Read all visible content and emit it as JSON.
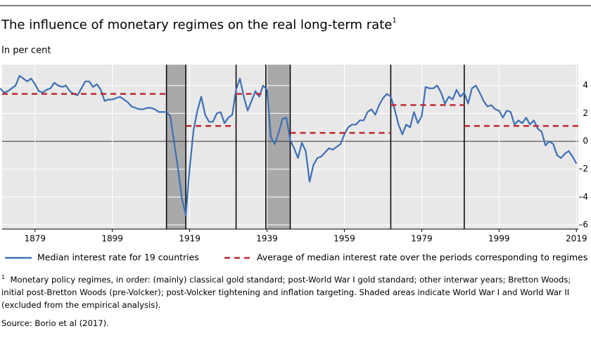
{
  "chart_data": {
    "type": "line",
    "title": "The influence of monetary regimes on the real long-term rate",
    "title_note": "1",
    "subtitle": "In per cent",
    "footnote_marker": "1",
    "footnote": "Monetary policy regimes, in order: (mainly) classical gold standard; post-World War I gold standard; other interwar years; Bretton Woods; initial post-Bretton Woods (pre-Volcker); post-Volcker tightening and inflation targeting. Shaded areas indicate World War I and World War II (excluded from the empirical analysis).",
    "source": "Source: Borio et al (2017).",
    "xlim": [
      1870.5,
      2019.5
    ],
    "xticks": [
      1879,
      1899,
      1919,
      1939,
      1959,
      1979,
      1999,
      2019
    ],
    "ylim": [
      -6.3,
      5.5
    ],
    "yticks": [
      {
        "value": -6,
        "label": "–6"
      },
      {
        "value": -4,
        "label": "–4"
      },
      {
        "value": -2,
        "label": "–2"
      },
      0,
      2,
      4
    ],
    "grid": true,
    "shaded": [
      [
        1913,
        1918
      ],
      [
        1938.7,
        1945
      ]
    ],
    "breaks": [
      1931,
      1971,
      1990
    ],
    "series": [
      {
        "name": "Median interest rate for 19 countries",
        "color": "#3d6fb6",
        "style": "solid",
        "x": [
          1870,
          1871,
          1872,
          1873,
          1874,
          1875,
          1876,
          1877,
          1878,
          1879,
          1880,
          1881,
          1882,
          1883,
          1884,
          1885,
          1886,
          1887,
          1888,
          1889,
          1890,
          1891,
          1892,
          1893,
          1894,
          1895,
          1896,
          1897,
          1898,
          1899,
          1900,
          1901,
          1902,
          1903,
          1904,
          1905,
          1906,
          1907,
          1908,
          1909,
          1910,
          1911,
          1912,
          1913,
          1914,
          1915,
          1916,
          1917,
          1918,
          1919,
          1920,
          1921,
          1922,
          1923,
          1924,
          1925,
          1926,
          1927,
          1928,
          1929,
          1930,
          1931,
          1932,
          1933,
          1934,
          1935,
          1936,
          1937,
          1938,
          1939,
          1940,
          1941,
          1942,
          1943,
          1944,
          1945,
          1946,
          1947,
          1948,
          1949,
          1950,
          1951,
          1952,
          1953,
          1954,
          1955,
          1956,
          1957,
          1958,
          1959,
          1960,
          1961,
          1962,
          1963,
          1964,
          1965,
          1966,
          1967,
          1968,
          1969,
          1970,
          1971,
          1972,
          1973,
          1974,
          1975,
          1976,
          1977,
          1978,
          1979,
          1980,
          1981,
          1982,
          1983,
          1984,
          1985,
          1986,
          1987,
          1988,
          1989,
          1990,
          1991,
          1992,
          1993,
          1994,
          1995,
          1996,
          1997,
          1998,
          1999,
          2000,
          2001,
          2002,
          2003,
          2004,
          2005,
          2006,
          2007,
          2008,
          2009,
          2010,
          2011,
          2012,
          2013,
          2014,
          2015,
          2016,
          2017,
          2018,
          2019
        ],
        "values": [
          3.8,
          3.5,
          3.6,
          3.8,
          4.0,
          4.7,
          4.5,
          4.3,
          4.5,
          4.1,
          3.6,
          3.5,
          3.7,
          3.8,
          4.2,
          4.0,
          3.9,
          4.0,
          3.6,
          3.4,
          3.3,
          3.8,
          4.3,
          4.3,
          3.9,
          4.1,
          3.7,
          2.9,
          3.0,
          3.0,
          3.1,
          3.2,
          3.0,
          2.8,
          2.5,
          2.4,
          2.3,
          2.3,
          2.4,
          2.4,
          2.3,
          2.1,
          2.1,
          2.1,
          1.8,
          -0.1,
          -2.0,
          -4.1,
          -5.3,
          -1.9,
          0.8,
          2.2,
          3.2,
          1.9,
          1.4,
          1.4,
          2.0,
          2.1,
          1.3,
          1.7,
          1.9,
          3.7,
          4.5,
          3.2,
          2.2,
          2.9,
          3.6,
          3.2,
          4.0,
          3.7,
          0.3,
          -0.2,
          0.6,
          1.6,
          1.7,
          0.1,
          -0.5,
          -1.2,
          -0.1,
          -0.7,
          -2.9,
          -1.7,
          -1.2,
          -1.1,
          -0.8,
          -0.5,
          -0.6,
          -0.4,
          -0.2,
          0.5,
          1.0,
          1.2,
          1.2,
          1.5,
          1.5,
          2.1,
          2.3,
          1.9,
          2.6,
          3.1,
          3.4,
          3.2,
          2.3,
          1.2,
          0.5,
          1.2,
          1.0,
          2.1,
          1.3,
          1.8,
          3.9,
          3.8,
          3.8,
          4.0,
          3.5,
          2.7,
          3.2,
          3.0,
          3.7,
          3.2,
          3.5,
          2.7,
          3.8,
          4.0,
          3.5,
          2.9,
          2.5,
          2.6,
          2.3,
          2.2,
          1.7,
          2.2,
          2.1,
          1.2,
          1.5,
          1.3,
          1.7,
          1.2,
          1.5,
          0.9,
          0.7,
          -0.3,
          0.0,
          -0.2,
          -1.0,
          -1.2,
          -0.9,
          -0.7,
          -1.1,
          -1.6
        ]
      },
      {
        "name": "Average of median interest rate over the periods corresponding to regimes",
        "color": "#c0272d",
        "style": "dashed",
        "segments": [
          {
            "x": [
              1870.5,
              1913
            ],
            "value": 3.4
          },
          {
            "x": [
              1918,
              1931
            ],
            "value": 1.1
          },
          {
            "x": [
              1931,
              1938.7
            ],
            "value": 3.4
          },
          {
            "x": [
              1945,
              1971
            ],
            "value": 0.6
          },
          {
            "x": [
              1971,
              1990
            ],
            "value": 2.6
          },
          {
            "x": [
              1990,
              2019.5
            ],
            "value": 1.1
          }
        ]
      }
    ]
  }
}
